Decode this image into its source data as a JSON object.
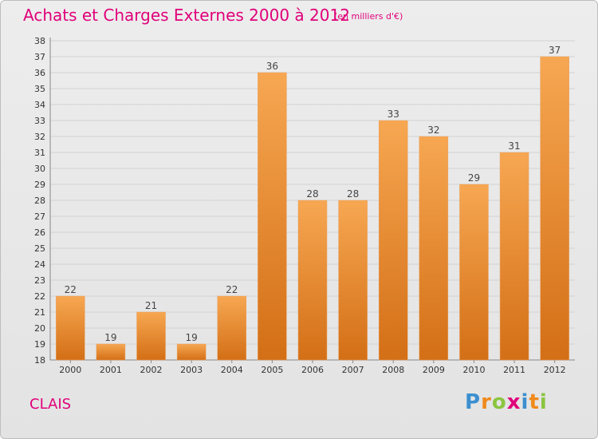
{
  "header": {
    "title": "Achats et Charges Externes 2000 à 2012",
    "unit": "(en milliers d'€)"
  },
  "footer": {
    "place": "CLAIS",
    "brand": "Proxiti",
    "brand_letters": [
      {
        "ch": "P",
        "color": "#3b8fd0"
      },
      {
        "ch": "r",
        "color": "#f08a1c"
      },
      {
        "ch": "o",
        "color": "#8bc540"
      },
      {
        "ch": "x",
        "color": "#e0007a"
      },
      {
        "ch": "i",
        "color": "#3b8fd0"
      },
      {
        "ch": "t",
        "color": "#f08a1c"
      },
      {
        "ch": "i",
        "color": "#8bc540"
      }
    ]
  },
  "colors": {
    "bar_top": "#f7a752",
    "bar_bottom": "#d36f16",
    "accent": "#e0007a"
  },
  "chart_data": {
    "type": "bar",
    "title": "Achats et Charges Externes 2000 à 2012",
    "ylabel": "(en milliers d'€)",
    "categories": [
      "2000",
      "2001",
      "2002",
      "2003",
      "2004",
      "2005",
      "2006",
      "2007",
      "2008",
      "2009",
      "2010",
      "2011",
      "2012"
    ],
    "values": [
      22,
      19,
      21,
      19,
      22,
      36,
      28,
      28,
      33,
      32,
      29,
      31,
      37
    ],
    "ylim": [
      18,
      38
    ],
    "yticks": [
      18,
      19,
      20,
      21,
      22,
      23,
      24,
      25,
      26,
      27,
      28,
      29,
      30,
      31,
      32,
      33,
      34,
      35,
      36,
      37,
      38
    ],
    "grid": true,
    "legend": "none"
  }
}
